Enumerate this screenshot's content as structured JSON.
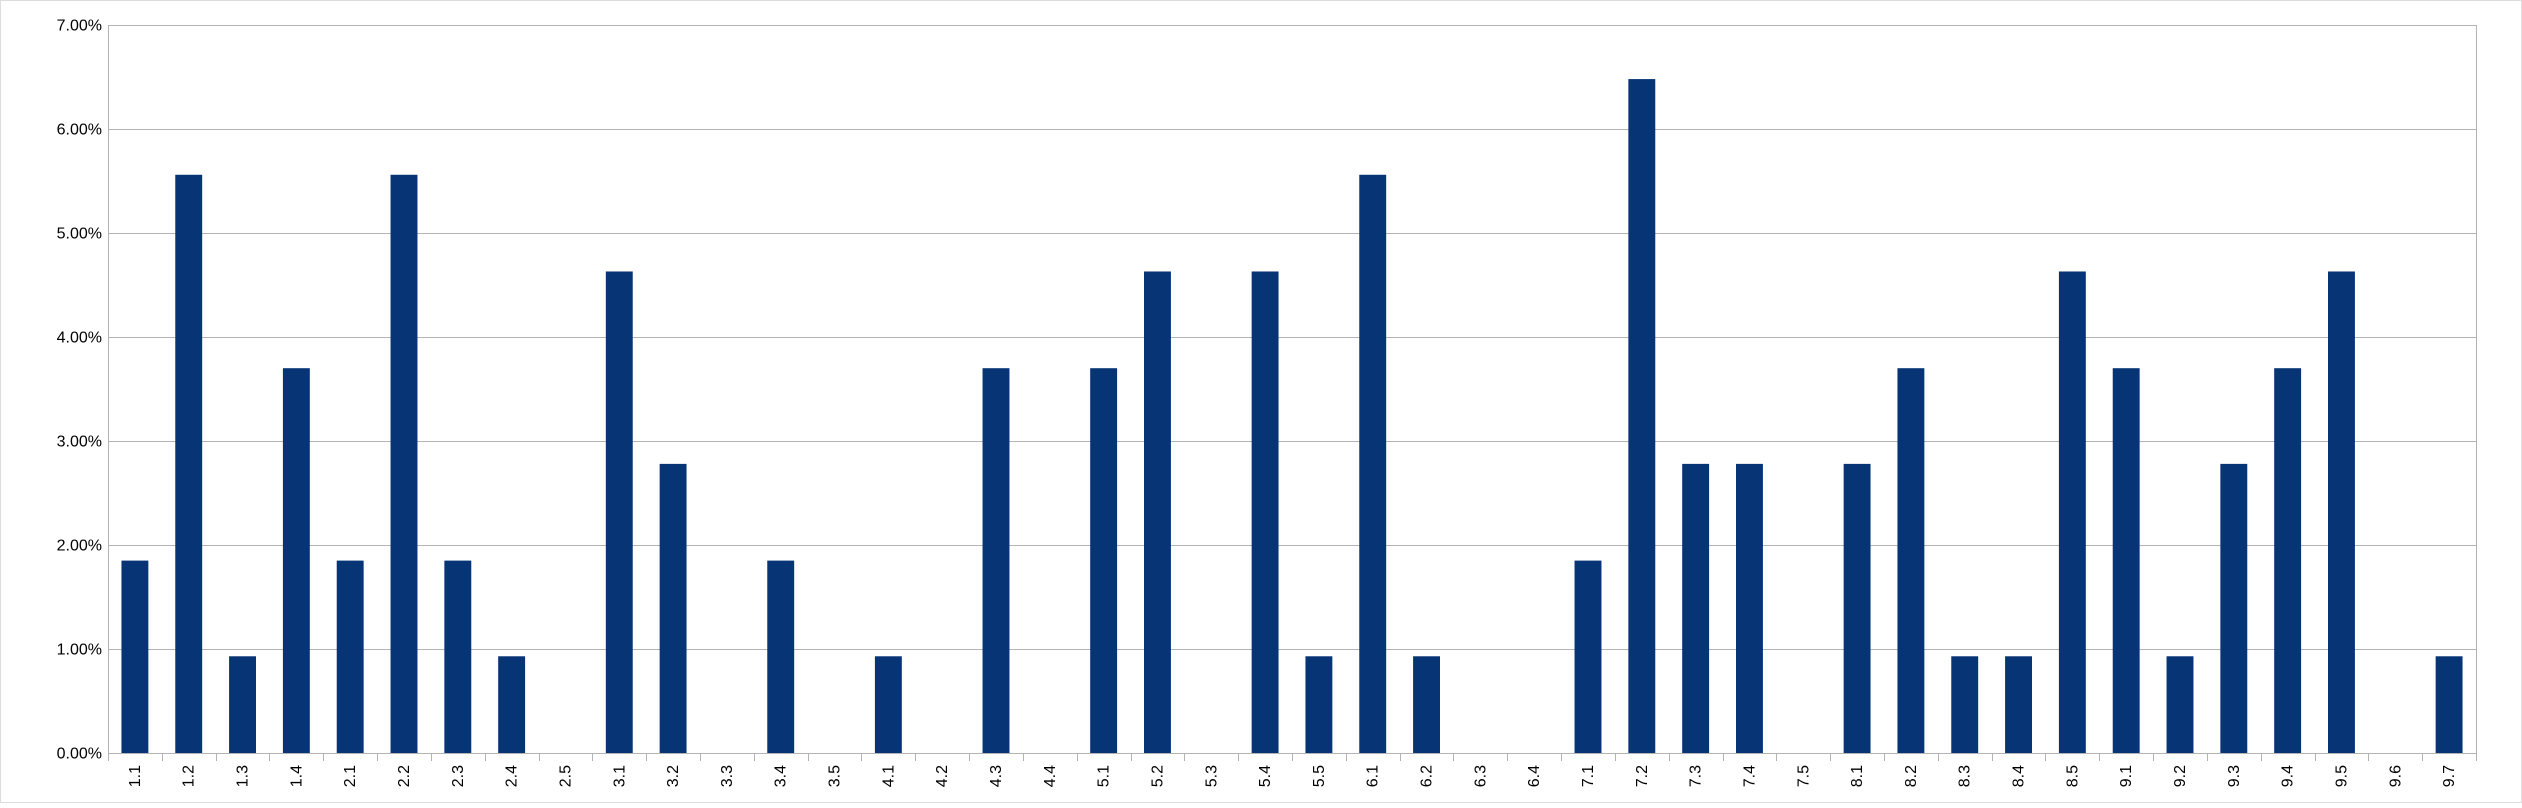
{
  "chart_data": {
    "type": "bar",
    "title": "",
    "xlabel": "",
    "ylabel": "",
    "ylim": [
      0,
      0.07
    ],
    "y_ticks": [
      0,
      0.01,
      0.02,
      0.03,
      0.04,
      0.05,
      0.06,
      0.07
    ],
    "y_tick_labels": [
      "0.00%",
      "1.00%",
      "2.00%",
      "3.00%",
      "4.00%",
      "5.00%",
      "6.00%",
      "7.00%"
    ],
    "grid": true,
    "legend": "none",
    "bar_color": "#063475",
    "categories": [
      "1.1",
      "1.2",
      "1.3",
      "1.4",
      "2.1",
      "2.2",
      "2.3",
      "2.4",
      "2.5",
      "3.1",
      "3.2",
      "3.3",
      "3.4",
      "3.5",
      "4.1",
      "4.2",
      "4.3",
      "4.4",
      "5.1",
      "5.2",
      "5.3",
      "5.4",
      "5.5",
      "6.1",
      "6.2",
      "6.3",
      "6.4",
      "7.1",
      "7.2",
      "7.3",
      "7.4",
      "7.5",
      "8.1",
      "8.2",
      "8.3",
      "8.4",
      "8.5",
      "9.1",
      "9.2",
      "9.3",
      "9.4",
      "9.5",
      "9.6",
      "9.7"
    ],
    "values": [
      0.0185,
      0.0556,
      0.0093,
      0.037,
      0.0185,
      0.0556,
      0.0185,
      0.0093,
      0,
      0.0463,
      0.0278,
      0,
      0.0185,
      0,
      0.0093,
      0,
      0.037,
      0,
      0.037,
      0.0463,
      0,
      0.0463,
      0.0093,
      0.0556,
      0.0093,
      0,
      0,
      0.0185,
      0.0648,
      0.0278,
      0.0278,
      0,
      0.0278,
      0.037,
      0.0093,
      0.0093,
      0.0463,
      0.037,
      0.0093,
      0.0278,
      0.037,
      0.0463,
      0,
      0.0093
    ]
  }
}
